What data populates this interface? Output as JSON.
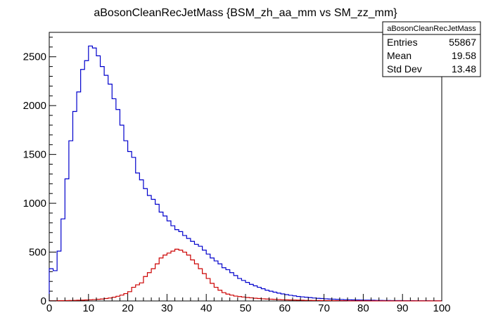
{
  "chart_data": {
    "type": "histogram",
    "title": "aBosonCleanRecJetMass {BSM_zh_aa_mm vs SM_zz_mm}",
    "xlabel": "",
    "ylabel": "",
    "xlim": [
      0,
      100
    ],
    "ylim": [
      0,
      2750
    ],
    "bin_width": 1,
    "x_ticks": [
      0,
      10,
      20,
      30,
      40,
      50,
      60,
      70,
      80,
      90,
      100
    ],
    "y_ticks": [
      0,
      500,
      1000,
      1500,
      2000,
      2500
    ],
    "grid": false,
    "series": [
      {
        "color": "#0000cc",
        "values": [
          330,
          310,
          510,
          840,
          1250,
          1640,
          1940,
          2140,
          2370,
          2460,
          2610,
          2590,
          2510,
          2400,
          2310,
          2220,
          2070,
          1960,
          1800,
          1640,
          1530,
          1470,
          1310,
          1240,
          1150,
          1080,
          1040,
          990,
          910,
          870,
          820,
          770,
          730,
          710,
          670,
          640,
          610,
          580,
          560,
          520,
          480,
          440,
          410,
          380,
          340,
          320,
          290,
          260,
          230,
          210,
          190,
          170,
          155,
          140,
          125,
          110,
          100,
          90,
          80,
          72,
          65,
          58,
          52,
          46,
          42,
          38,
          34,
          30,
          27,
          25,
          22,
          20,
          18,
          16,
          15,
          13,
          12,
          11,
          10,
          9,
          8,
          8,
          7,
          6,
          6,
          5,
          5,
          4,
          4,
          4,
          3,
          3,
          3,
          2,
          2,
          2,
          2,
          1,
          1,
          1
        ]
      },
      {
        "color": "#cc0000",
        "values": [
          2,
          2,
          3,
          3,
          4,
          5,
          6,
          7,
          8,
          10,
          12,
          14,
          17,
          20,
          25,
          30,
          38,
          48,
          60,
          75,
          95,
          140,
          165,
          185,
          250,
          290,
          330,
          380,
          440,
          470,
          490,
          510,
          530,
          520,
          500,
          470,
          420,
          380,
          330,
          280,
          230,
          180,
          140,
          110,
          85,
          70,
          60,
          50,
          45,
          40,
          35,
          32,
          28,
          25,
          22,
          20,
          18,
          16,
          14,
          12,
          11,
          10,
          9,
          8,
          7,
          6,
          6,
          5,
          5,
          4,
          4,
          4,
          3,
          3,
          3,
          3,
          2,
          2,
          2,
          2,
          2,
          2,
          1,
          1,
          1,
          1,
          1,
          1,
          1,
          1,
          1,
          1,
          1,
          1,
          1,
          1,
          1,
          1,
          1,
          1
        ]
      }
    ],
    "stats_box": {
      "title": "aBosonCleanRecJetMass",
      "rows": [
        {
          "label": "Entries",
          "value": "55867"
        },
        {
          "label": "Mean",
          "value": "19.58"
        },
        {
          "label": "Std Dev",
          "value": "13.48"
        }
      ]
    }
  }
}
